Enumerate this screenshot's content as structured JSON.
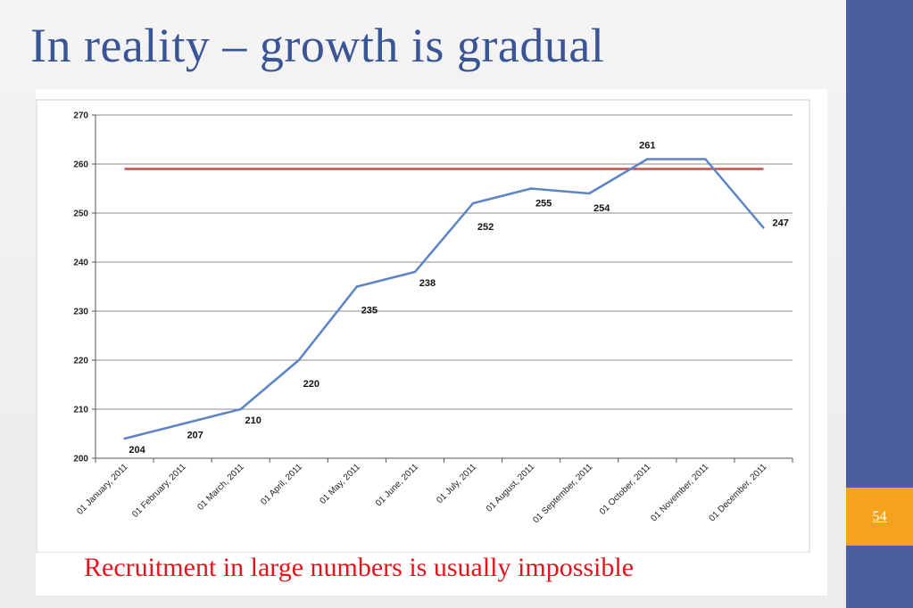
{
  "slide": {
    "title": "In reality – growth is gradual",
    "caption": "Recruitment in large numbers is usually impossible",
    "page_number": "54"
  },
  "colors": {
    "title": "#3a5596",
    "sidebar": "#4a5fa0",
    "page_box": "#f5a31e",
    "caption": "#e3141c",
    "series_line": "#5b85c4",
    "target_line": "#c0504d",
    "gridline": "#8c8c8c"
  },
  "chart_data": {
    "type": "line",
    "title": "",
    "xlabel": "",
    "ylabel": "",
    "ylim": [
      200,
      270
    ],
    "yticks": [
      200,
      210,
      220,
      230,
      240,
      250,
      260,
      270
    ],
    "grid": true,
    "legend": "none",
    "categories": [
      "01 January, 2011",
      "01 February, 2011",
      "01 March, 2011",
      "01 April, 2011",
      "01 May, 2011",
      "01 June, 2011",
      "01 July, 2011",
      "01 August, 2011",
      "01 September, 2011",
      "01 October, 2011",
      "01 November, 2011",
      "01 December, 2011"
    ],
    "series": [
      {
        "values": [
          204,
          207,
          210,
          220,
          235,
          238,
          252,
          255,
          254,
          261,
          261,
          247
        ],
        "data_labels": [
          "204",
          "207",
          "210",
          "220",
          "235",
          "238",
          "252",
          "255",
          "254",
          "261",
          "",
          "247"
        ]
      }
    ],
    "reference_line": {
      "value": 259
    }
  }
}
